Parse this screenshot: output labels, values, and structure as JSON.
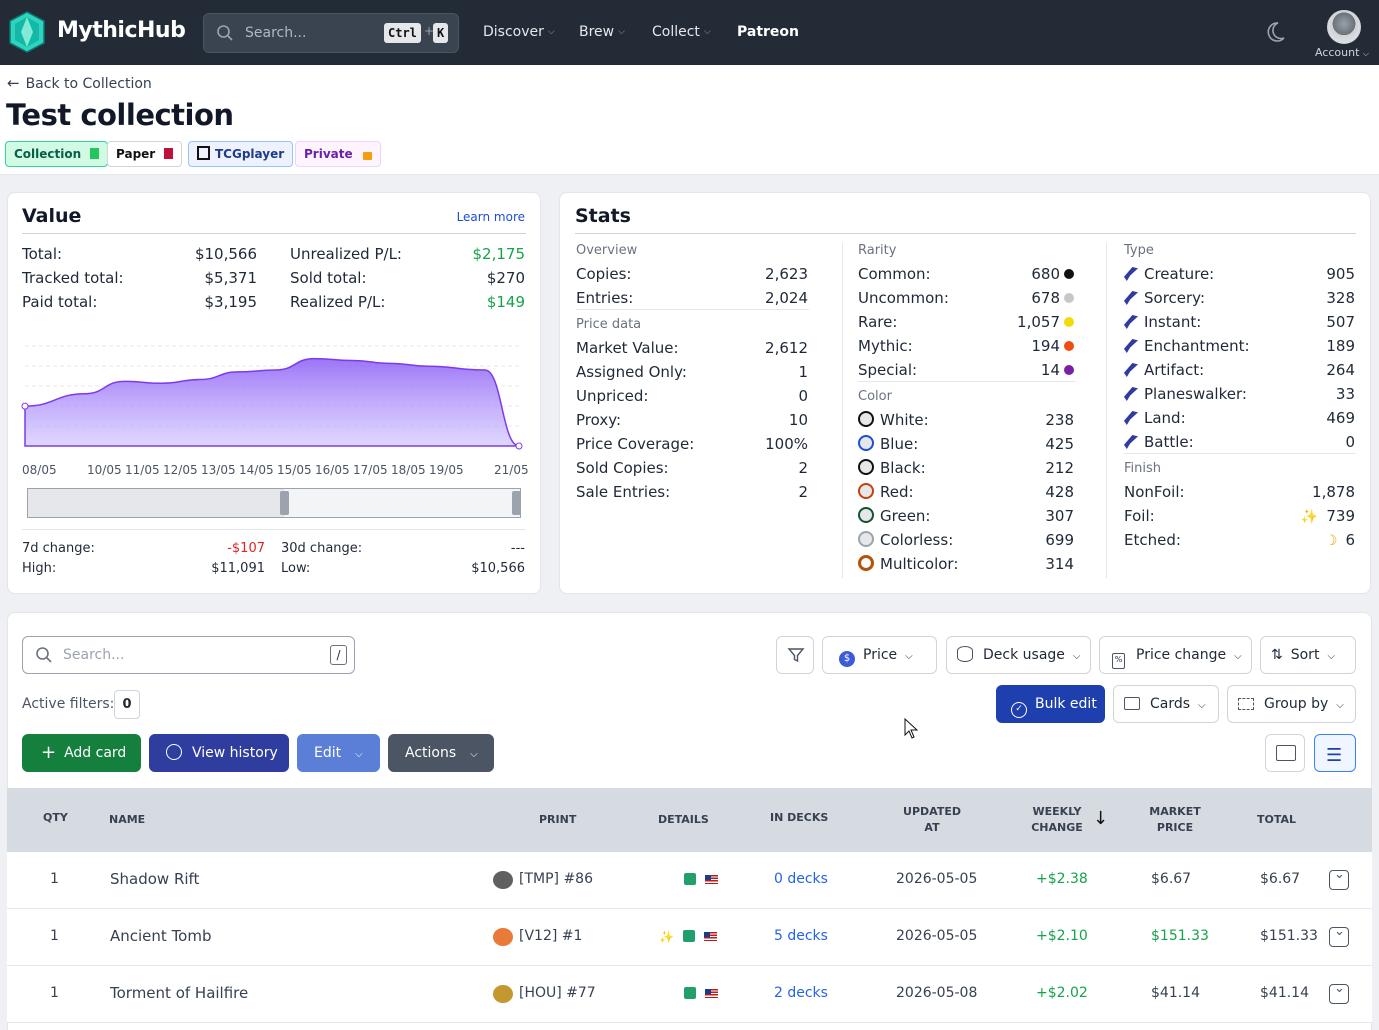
{
  "nav": {
    "logo": "MythicHub",
    "search_placeholder": "Search...",
    "kbd_ctrl": "Ctrl",
    "kbd_plus": "+",
    "kbd_k": "K",
    "items": [
      {
        "label": "Discover",
        "has_dropdown": true
      },
      {
        "label": "Brew",
        "has_dropdown": true
      },
      {
        "label": "Collect",
        "has_dropdown": true
      },
      {
        "label": "Patreon",
        "has_dropdown": false
      }
    ],
    "account_label": "Account"
  },
  "header": {
    "back_label": "Back to Collection",
    "title": "Test collection",
    "tags": [
      {
        "label": "Collection",
        "icon": "green-book-icon"
      },
      {
        "label": "Paper",
        "icon": "red-card-icon"
      },
      {
        "label": "TCGplayer",
        "icon": "tcgplayer-icon"
      },
      {
        "label": "Private",
        "icon": "lock-icon"
      }
    ]
  },
  "value": {
    "title": "Value",
    "learn_more": "Learn more",
    "left": [
      {
        "label": "Total:",
        "value": "$10,566"
      },
      {
        "label": "Tracked total:",
        "value": "$5,371"
      },
      {
        "label": "Paid total:",
        "value": "$3,195"
      }
    ],
    "right": [
      {
        "label": "Unrealized P/L:",
        "value": "$2,175",
        "tone": "green"
      },
      {
        "label": "Sold total:",
        "value": "$270"
      },
      {
        "label": "Realized P/L:",
        "value": "$149",
        "tone": "green"
      }
    ],
    "x_labels": [
      "08/05",
      "10/05",
      "11/05",
      "12/05",
      "13/05",
      "14/05",
      "15/05",
      "16/05",
      "17/05",
      "18/05",
      "19/05",
      "21/05"
    ],
    "change_7d_label": "7d change:",
    "change_7d": "-$107",
    "change_30d_label": "30d change:",
    "change_30d": "---",
    "high_label": "High:",
    "high": "$11,091",
    "low_label": "Low:",
    "low": "$10,566"
  },
  "chart_data": {
    "type": "area",
    "x": [
      "08/05",
      "10/05",
      "11/05",
      "12/05",
      "13/05",
      "14/05",
      "15/05",
      "16/05",
      "17/05",
      "18/05",
      "19/05",
      "20/05",
      "21/05"
    ],
    "y_relative": [
      0.42,
      0.55,
      0.68,
      0.66,
      0.7,
      0.78,
      0.8,
      0.92,
      0.9,
      0.87,
      0.84,
      0.8,
      0.0
    ],
    "color": "#8b5cf6"
  },
  "stats": {
    "title": "Stats",
    "overview_title": "Overview",
    "overview": [
      {
        "label": "Copies:",
        "value": "2,623"
      },
      {
        "label": "Entries:",
        "value": "2,024"
      }
    ],
    "price_title": "Price data",
    "price": [
      {
        "label": "Market Value:",
        "value": "2,612"
      },
      {
        "label": "Assigned Only:",
        "value": "1"
      },
      {
        "label": "Unpriced:",
        "value": "0"
      },
      {
        "label": "Proxy:",
        "value": "10"
      },
      {
        "label": "Price Coverage:",
        "value": "100%"
      },
      {
        "label": "Sold Copies:",
        "value": "2"
      },
      {
        "label": "Sale Entries:",
        "value": "2"
      }
    ],
    "rarity_title": "Rarity",
    "rarity": [
      {
        "label": "Common:",
        "value": "680",
        "color": "#111111"
      },
      {
        "label": "Uncommon:",
        "value": "678",
        "color": "#c8c8c8"
      },
      {
        "label": "Rare:",
        "value": "1,057",
        "color": "#f5d90a"
      },
      {
        "label": "Mythic:",
        "value": "194",
        "color": "#f04d12"
      },
      {
        "label": "Special:",
        "value": "14",
        "color": "#7b1fa2"
      }
    ],
    "color_title": "Color",
    "colors": [
      {
        "label": "White:",
        "value": "238",
        "icon": "white-mana-icon"
      },
      {
        "label": "Blue:",
        "value": "425",
        "icon": "blue-mana-icon"
      },
      {
        "label": "Black:",
        "value": "212",
        "icon": "black-mana-icon"
      },
      {
        "label": "Red:",
        "value": "428",
        "icon": "red-mana-icon"
      },
      {
        "label": "Green:",
        "value": "307",
        "icon": "green-mana-icon"
      },
      {
        "label": "Colorless:",
        "value": "699",
        "icon": "colorless-mana-icon"
      },
      {
        "label": "Multicolor:",
        "value": "314",
        "icon": "multicolor-icon"
      }
    ],
    "type_title": "Type",
    "types": [
      {
        "label": "Creature:",
        "value": "905"
      },
      {
        "label": "Sorcery:",
        "value": "328"
      },
      {
        "label": "Instant:",
        "value": "507"
      },
      {
        "label": "Enchantment:",
        "value": "189"
      },
      {
        "label": "Artifact:",
        "value": "264"
      },
      {
        "label": "Planeswalker:",
        "value": "33"
      },
      {
        "label": "Land:",
        "value": "469"
      },
      {
        "label": "Battle:",
        "value": "0"
      }
    ],
    "finish_title": "Finish",
    "finish": [
      {
        "label": "NonFoil:",
        "value": "1,878"
      },
      {
        "label": "Foil:",
        "value": "739"
      },
      {
        "label": "Etched:",
        "value": "6"
      }
    ]
  },
  "toolbar": {
    "search_placeholder": "Search...",
    "search_kbd": "/",
    "price": "Price",
    "deck_usage": "Deck usage",
    "price_change": "Price change",
    "sort": "Sort",
    "active_filters_label": "Active filters:",
    "active_filters_count": "0",
    "bulk_edit": "Bulk edit",
    "cards": "Cards",
    "group_by": "Group by",
    "add_card": "Add card",
    "view_history": "View history",
    "edit": "Edit",
    "actions": "Actions"
  },
  "table": {
    "headers": {
      "qty": "QTY",
      "name": "NAME",
      "print": "PRINT",
      "details": "DETAILS",
      "in_decks": "IN DECKS",
      "updated_1": "UPDATED",
      "updated_2": "AT",
      "weekly_1": "WEEKLY",
      "weekly_2": "CHANGE",
      "market_1": "MARKET",
      "market_2": "PRICE",
      "total": "TOTAL"
    },
    "rows": [
      {
        "qty": "1",
        "name": "Shadow Rift",
        "print": "[TMP] #86",
        "foil": false,
        "decks": "0 decks",
        "updated": "2026-05-05",
        "weekly": "+$2.38",
        "market": "$6.67",
        "market_green": false,
        "total": "$6.67"
      },
      {
        "qty": "1",
        "name": "Ancient Tomb",
        "print": "[V12] #1",
        "foil": true,
        "decks": "5 decks",
        "updated": "2026-05-05",
        "weekly": "+$2.10",
        "market": "$151.33",
        "market_green": true,
        "total": "$151.33"
      },
      {
        "qty": "1",
        "name": "Torment of Hailfire",
        "print": "[HOU] #77",
        "foil": false,
        "decks": "2 decks",
        "updated": "2026-05-08",
        "weekly": "+$2.02",
        "market": "$41.14",
        "market_green": false,
        "total": "$41.14"
      }
    ]
  }
}
